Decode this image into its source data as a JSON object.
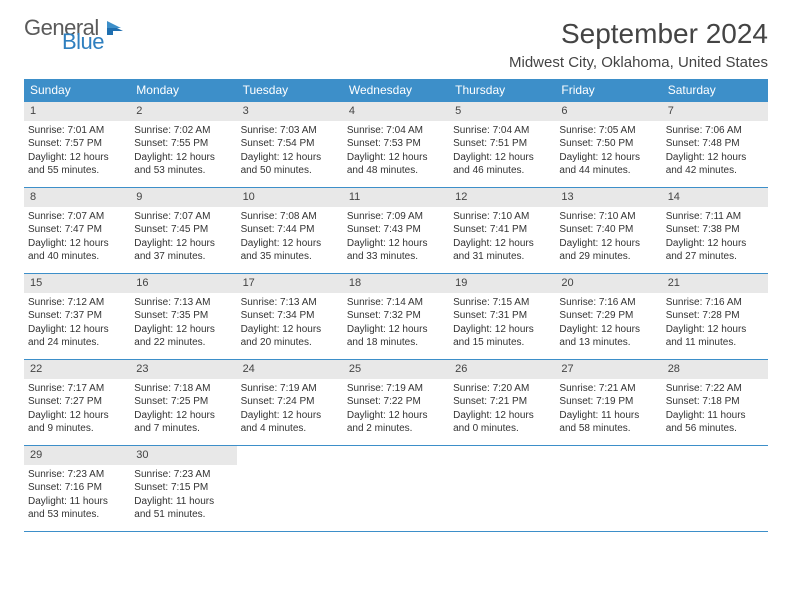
{
  "logo": {
    "general": "General",
    "blue": "Blue"
  },
  "title": "September 2024",
  "location": "Midwest City, Oklahoma, United States",
  "colors": {
    "header_bg": "#3d8fc9",
    "header_text": "#ffffff",
    "daynum_bg": "#e8e8e8",
    "border": "#3d8fc9",
    "logo_gray": "#5a5a5a",
    "logo_blue": "#2f7fbf"
  },
  "weekdays": [
    "Sunday",
    "Monday",
    "Tuesday",
    "Wednesday",
    "Thursday",
    "Friday",
    "Saturday"
  ],
  "days": [
    {
      "n": "1",
      "sr": "7:01 AM",
      "ss": "7:57 PM",
      "dl": "12 hours and 55 minutes."
    },
    {
      "n": "2",
      "sr": "7:02 AM",
      "ss": "7:55 PM",
      "dl": "12 hours and 53 minutes."
    },
    {
      "n": "3",
      "sr": "7:03 AM",
      "ss": "7:54 PM",
      "dl": "12 hours and 50 minutes."
    },
    {
      "n": "4",
      "sr": "7:04 AM",
      "ss": "7:53 PM",
      "dl": "12 hours and 48 minutes."
    },
    {
      "n": "5",
      "sr": "7:04 AM",
      "ss": "7:51 PM",
      "dl": "12 hours and 46 minutes."
    },
    {
      "n": "6",
      "sr": "7:05 AM",
      "ss": "7:50 PM",
      "dl": "12 hours and 44 minutes."
    },
    {
      "n": "7",
      "sr": "7:06 AM",
      "ss": "7:48 PM",
      "dl": "12 hours and 42 minutes."
    },
    {
      "n": "8",
      "sr": "7:07 AM",
      "ss": "7:47 PM",
      "dl": "12 hours and 40 minutes."
    },
    {
      "n": "9",
      "sr": "7:07 AM",
      "ss": "7:45 PM",
      "dl": "12 hours and 37 minutes."
    },
    {
      "n": "10",
      "sr": "7:08 AM",
      "ss": "7:44 PM",
      "dl": "12 hours and 35 minutes."
    },
    {
      "n": "11",
      "sr": "7:09 AM",
      "ss": "7:43 PM",
      "dl": "12 hours and 33 minutes."
    },
    {
      "n": "12",
      "sr": "7:10 AM",
      "ss": "7:41 PM",
      "dl": "12 hours and 31 minutes."
    },
    {
      "n": "13",
      "sr": "7:10 AM",
      "ss": "7:40 PM",
      "dl": "12 hours and 29 minutes."
    },
    {
      "n": "14",
      "sr": "7:11 AM",
      "ss": "7:38 PM",
      "dl": "12 hours and 27 minutes."
    },
    {
      "n": "15",
      "sr": "7:12 AM",
      "ss": "7:37 PM",
      "dl": "12 hours and 24 minutes."
    },
    {
      "n": "16",
      "sr": "7:13 AM",
      "ss": "7:35 PM",
      "dl": "12 hours and 22 minutes."
    },
    {
      "n": "17",
      "sr": "7:13 AM",
      "ss": "7:34 PM",
      "dl": "12 hours and 20 minutes."
    },
    {
      "n": "18",
      "sr": "7:14 AM",
      "ss": "7:32 PM",
      "dl": "12 hours and 18 minutes."
    },
    {
      "n": "19",
      "sr": "7:15 AM",
      "ss": "7:31 PM",
      "dl": "12 hours and 15 minutes."
    },
    {
      "n": "20",
      "sr": "7:16 AM",
      "ss": "7:29 PM",
      "dl": "12 hours and 13 minutes."
    },
    {
      "n": "21",
      "sr": "7:16 AM",
      "ss": "7:28 PM",
      "dl": "12 hours and 11 minutes."
    },
    {
      "n": "22",
      "sr": "7:17 AM",
      "ss": "7:27 PM",
      "dl": "12 hours and 9 minutes."
    },
    {
      "n": "23",
      "sr": "7:18 AM",
      "ss": "7:25 PM",
      "dl": "12 hours and 7 minutes."
    },
    {
      "n": "24",
      "sr": "7:19 AM",
      "ss": "7:24 PM",
      "dl": "12 hours and 4 minutes."
    },
    {
      "n": "25",
      "sr": "7:19 AM",
      "ss": "7:22 PM",
      "dl": "12 hours and 2 minutes."
    },
    {
      "n": "26",
      "sr": "7:20 AM",
      "ss": "7:21 PM",
      "dl": "12 hours and 0 minutes."
    },
    {
      "n": "27",
      "sr": "7:21 AM",
      "ss": "7:19 PM",
      "dl": "11 hours and 58 minutes."
    },
    {
      "n": "28",
      "sr": "7:22 AM",
      "ss": "7:18 PM",
      "dl": "11 hours and 56 minutes."
    },
    {
      "n": "29",
      "sr": "7:23 AM",
      "ss": "7:16 PM",
      "dl": "11 hours and 53 minutes."
    },
    {
      "n": "30",
      "sr": "7:23 AM",
      "ss": "7:15 PM",
      "dl": "11 hours and 51 minutes."
    }
  ],
  "labels": {
    "sunrise": "Sunrise: ",
    "sunset": "Sunset: ",
    "daylight": "Daylight: "
  },
  "layout": {
    "start_weekday": 0,
    "total_days": 30,
    "cols": 7
  }
}
